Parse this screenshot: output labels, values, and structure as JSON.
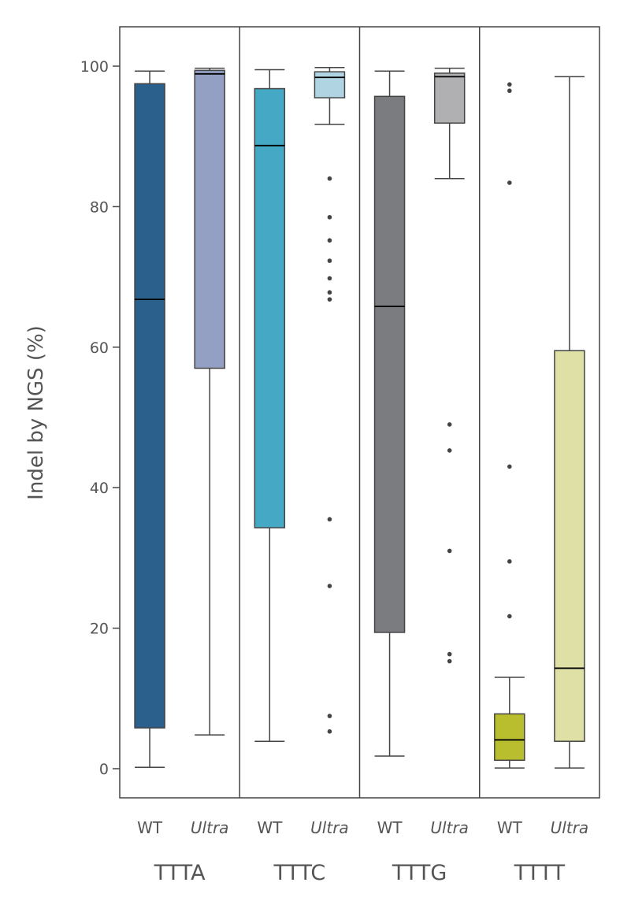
{
  "chart_data": {
    "type": "box",
    "ylabel": "Indel by NGS (%)",
    "ylim": [
      -4,
      106
    ],
    "yticks": [
      0,
      20,
      40,
      60,
      80,
      100
    ],
    "groups": [
      {
        "label": "TTTA",
        "series": [
          {
            "label": "WT",
            "italic": false,
            "color": "#2b5f8c",
            "min": 0.2,
            "q1": 5.8,
            "median": 66.8,
            "q3": 97.5,
            "max": 99.3,
            "outliers": []
          },
          {
            "label": "Ultra",
            "italic": true,
            "color": "#939fc3",
            "min": 4.8,
            "q1": 57.0,
            "median": 98.9,
            "q3": 99.4,
            "max": 99.7,
            "outliers": []
          }
        ]
      },
      {
        "label": "TTTC",
        "series": [
          {
            "label": "WT",
            "italic": false,
            "color": "#45a8c5",
            "min": 3.9,
            "q1": 34.3,
            "median": 88.7,
            "q3": 96.8,
            "max": 99.5,
            "outliers": []
          },
          {
            "label": "Ultra",
            "italic": true,
            "color": "#b1d4e3",
            "min": 91.7,
            "q1": 95.5,
            "median": 98.4,
            "q3": 99.2,
            "max": 99.8,
            "outliers": [
              84.0,
              78.5,
              75.2,
              72.3,
              69.8,
              67.8,
              66.8,
              35.5,
              26.0,
              7.5,
              5.3
            ]
          }
        ]
      },
      {
        "label": "TTTG",
        "series": [
          {
            "label": "WT",
            "italic": false,
            "color": "#7a7c80",
            "min": 1.8,
            "q1": 19.4,
            "median": 65.8,
            "q3": 95.7,
            "max": 99.3,
            "outliers": []
          },
          {
            "label": "Ultra",
            "italic": true,
            "color": "#b0b0b2",
            "min": 84.0,
            "q1": 91.9,
            "median": 98.5,
            "q3": 99.0,
            "max": 99.7,
            "outliers": [
              49.0,
              45.3,
              31.0,
              16.3,
              15.3
            ]
          }
        ]
      },
      {
        "label": "TTTT",
        "series": [
          {
            "label": "WT",
            "italic": false,
            "color": "#b8be2e",
            "min": 0.1,
            "q1": 1.2,
            "median": 4.1,
            "q3": 7.8,
            "max": 13.0,
            "outliers": [
              97.4,
              96.5,
              83.4,
              43.0,
              29.5,
              21.7
            ]
          },
          {
            "label": "Ultra",
            "italic": true,
            "color": "#dfe0a6",
            "min": 0.1,
            "q1": 3.9,
            "median": 14.3,
            "q3": 59.5,
            "max": 98.5,
            "outliers": []
          }
        ]
      }
    ],
    "colors": {
      "axis": "#444444",
      "text": "#555555",
      "box_edge": "#444444",
      "median": "#000000"
    }
  }
}
